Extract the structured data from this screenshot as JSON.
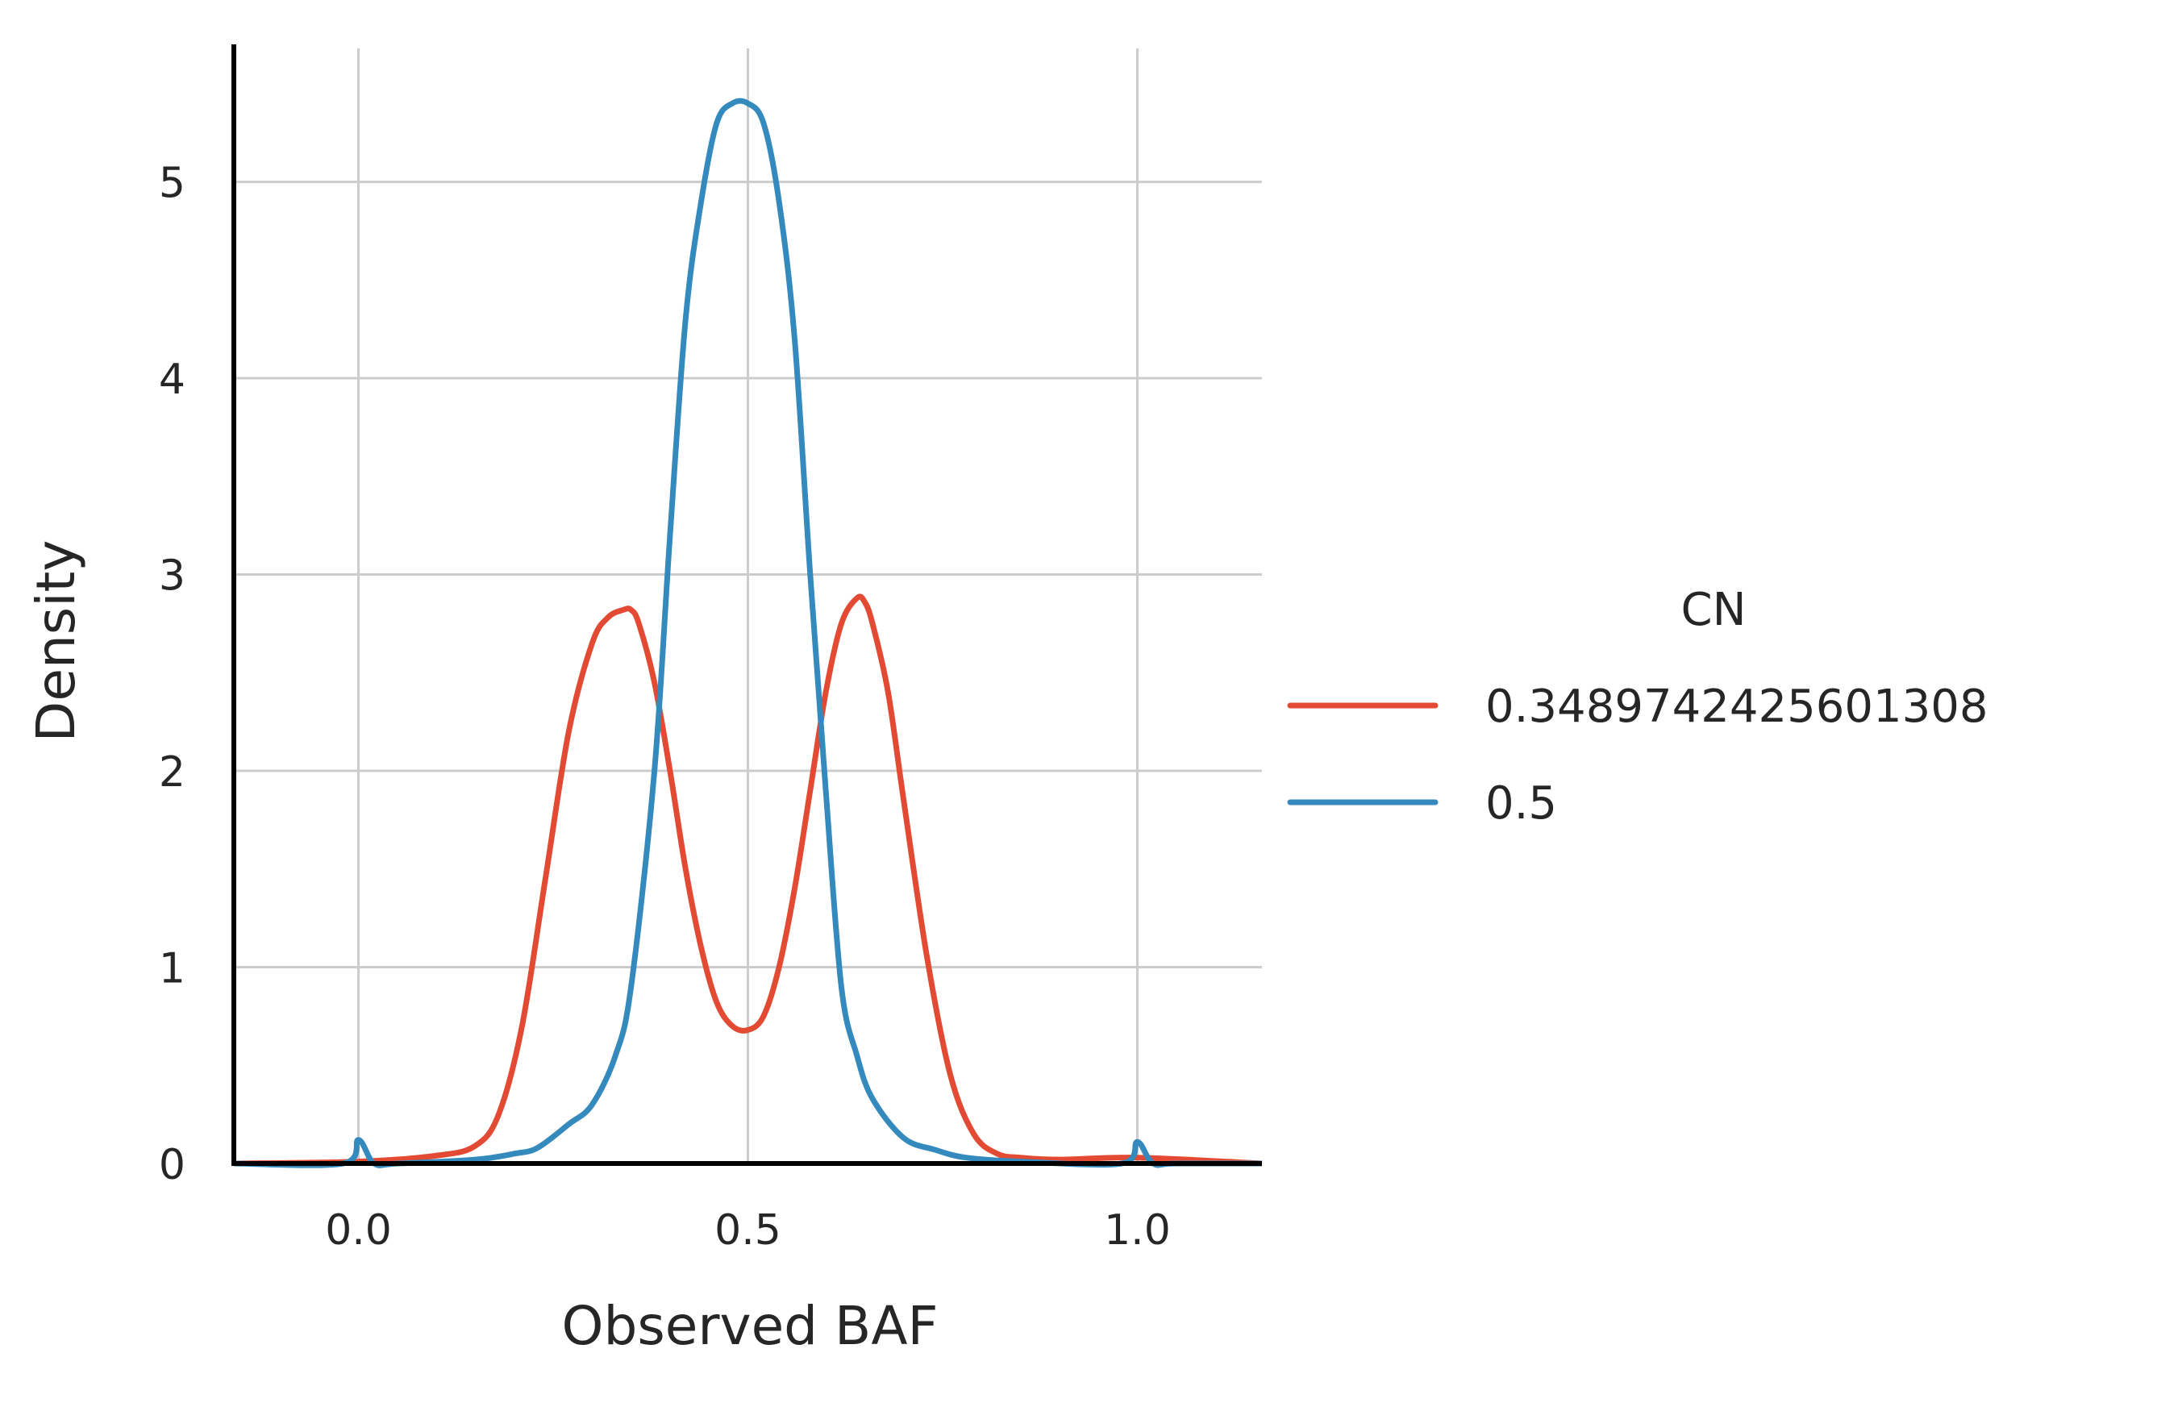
{
  "chart_data": {
    "type": "line",
    "xlabel": "Observed BAF",
    "ylabel": "Density",
    "xlim": [
      -0.16,
      1.16
    ],
    "ylim": [
      0,
      5.68
    ],
    "x_ticks": [
      {
        "value": 0.0,
        "label": "0.0"
      },
      {
        "value": 0.5,
        "label": "0.5"
      },
      {
        "value": 1.0,
        "label": "1.0"
      }
    ],
    "y_ticks": [
      {
        "value": 0,
        "label": "0"
      },
      {
        "value": 1,
        "label": "1"
      },
      {
        "value": 2,
        "label": "2"
      },
      {
        "value": 3,
        "label": "3"
      },
      {
        "value": 4,
        "label": "4"
      },
      {
        "value": 5,
        "label": "5"
      }
    ],
    "grid": true,
    "legend": {
      "title": "CN",
      "position": "right"
    },
    "series": [
      {
        "name": "0.3489742425601308",
        "color": "#e24a33",
        "x": [
          -0.16,
          0.0,
          0.1,
          0.15,
          0.18,
          0.21,
          0.24,
          0.27,
          0.3,
          0.32,
          0.34,
          0.35,
          0.36,
          0.38,
          0.4,
          0.42,
          0.44,
          0.46,
          0.48,
          0.5,
          0.52,
          0.54,
          0.56,
          0.58,
          0.6,
          0.62,
          0.64,
          0.65,
          0.66,
          0.68,
          0.7,
          0.73,
          0.76,
          0.79,
          0.82,
          0.85,
          0.9,
          1.0,
          1.16
        ],
        "y": [
          0.0,
          0.01,
          0.04,
          0.09,
          0.25,
          0.7,
          1.45,
          2.2,
          2.65,
          2.78,
          2.82,
          2.82,
          2.75,
          2.45,
          2.0,
          1.5,
          1.1,
          0.82,
          0.7,
          0.68,
          0.75,
          1.0,
          1.4,
          1.9,
          2.4,
          2.75,
          2.88,
          2.86,
          2.75,
          2.4,
          1.85,
          1.05,
          0.45,
          0.15,
          0.05,
          0.03,
          0.02,
          0.03,
          0.0
        ]
      },
      {
        "name": "0.5",
        "color": "#348abd",
        "x": [
          -0.16,
          -0.02,
          0.0,
          0.02,
          0.05,
          0.15,
          0.2,
          0.23,
          0.27,
          0.3,
          0.33,
          0.35,
          0.38,
          0.4,
          0.42,
          0.44,
          0.46,
          0.48,
          0.5,
          0.52,
          0.54,
          0.56,
          0.58,
          0.6,
          0.62,
          0.64,
          0.66,
          0.7,
          0.74,
          0.78,
          0.85,
          0.98,
          1.0,
          1.02,
          1.05,
          1.16
        ],
        "y": [
          0.0,
          0.0,
          0.12,
          0.0,
          0.0,
          0.02,
          0.05,
          0.08,
          0.2,
          0.3,
          0.55,
          0.9,
          2.0,
          3.2,
          4.3,
          4.9,
          5.3,
          5.4,
          5.4,
          5.3,
          4.9,
          4.2,
          3.0,
          1.9,
          0.9,
          0.55,
          0.33,
          0.13,
          0.07,
          0.03,
          0.01,
          0.0,
          0.11,
          0.0,
          0.0,
          0.0
        ]
      }
    ]
  }
}
